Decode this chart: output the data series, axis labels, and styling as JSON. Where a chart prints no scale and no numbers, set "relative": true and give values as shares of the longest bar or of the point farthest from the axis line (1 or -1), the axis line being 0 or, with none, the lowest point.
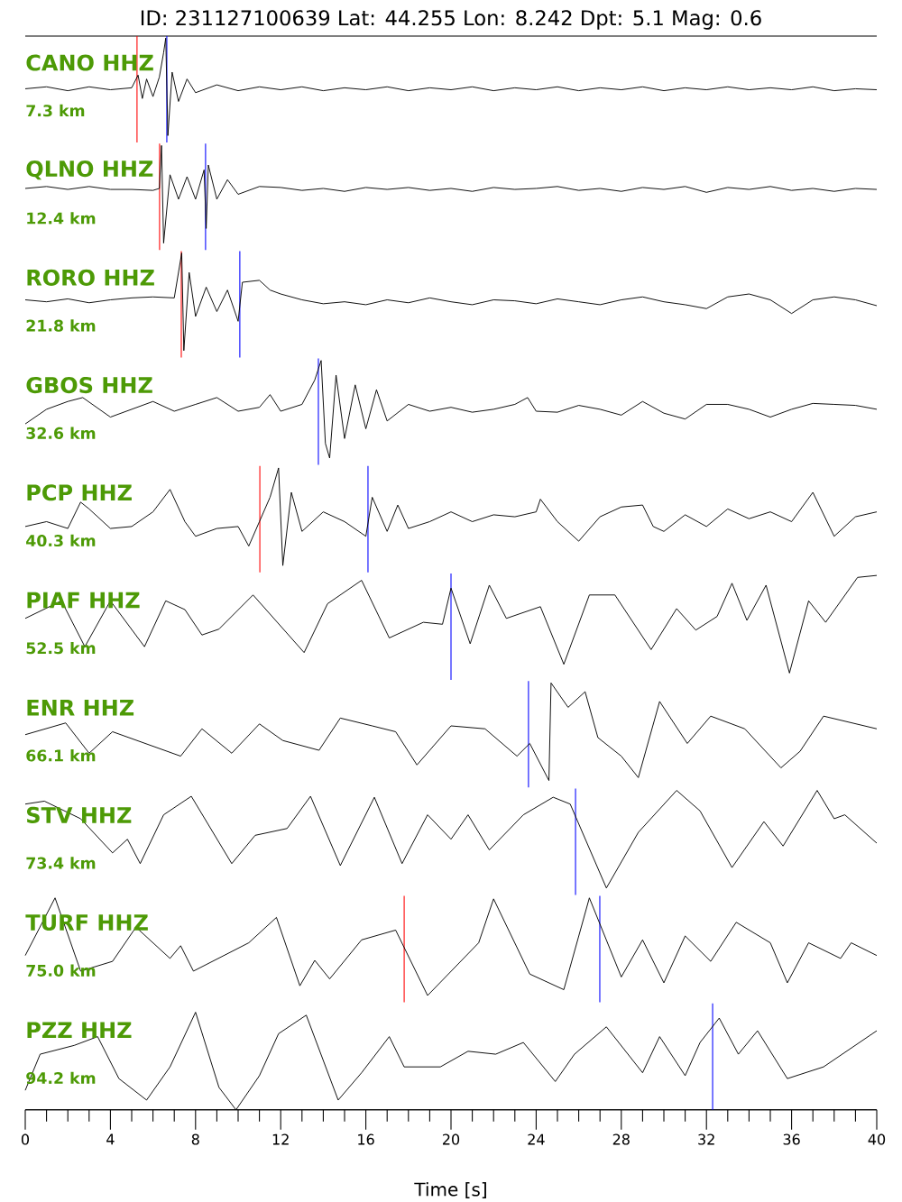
{
  "chart_data": [
    {
      "type": "other",
      "title": "ID: 231127100639 Lat: 44.255 Lon: 8.242 Dpt: 5.1 Mag: 0.6"
    },
    {
      "type": "line",
      "title": "CANO HHZ",
      "annotations": [
        "7.3 km"
      ],
      "relative": true,
      "xlim": [
        0,
        40
      ],
      "tick_labels": false,
      "color": "#000000",
      "x": [
        0,
        1,
        2,
        3,
        4,
        5,
        5.3,
        5.5,
        5.7,
        6.0,
        6.3,
        6.5,
        6.6,
        6.7,
        6.9,
        7.2,
        7.6,
        8,
        9,
        10,
        11,
        12,
        13,
        14,
        15,
        16,
        17,
        18,
        19,
        20,
        21,
        22,
        23,
        24,
        25,
        26,
        27,
        28,
        29,
        30,
        31,
        32,
        33,
        34,
        35,
        36,
        37,
        38,
        39,
        40
      ],
      "values": [
        0.48,
        0.5,
        0.46,
        0.5,
        0.47,
        0.49,
        0.62,
        0.38,
        0.58,
        0.4,
        0.6,
        0.85,
        1.0,
        0.0,
        0.65,
        0.35,
        0.58,
        0.44,
        0.52,
        0.46,
        0.5,
        0.47,
        0.5,
        0.46,
        0.49,
        0.47,
        0.5,
        0.46,
        0.49,
        0.47,
        0.5,
        0.46,
        0.49,
        0.47,
        0.5,
        0.46,
        0.49,
        0.47,
        0.5,
        0.46,
        0.49,
        0.47,
        0.5,
        0.47,
        0.49,
        0.47,
        0.5,
        0.46,
        0.48,
        0.47
      ],
      "ref_lines": [
        {
          "axis": "x",
          "value": 5.25,
          "color": "#ff0000"
        },
        {
          "axis": "x",
          "value": 6.65,
          "color": "#0000ff"
        }
      ]
    },
    {
      "type": "line",
      "title": "QLNO HHZ",
      "annotations": [
        "12.4 km"
      ],
      "relative": true,
      "xlim": [
        0,
        40
      ],
      "tick_labels": false,
      "color": "#000000",
      "x": [
        0,
        1,
        2,
        3,
        4,
        5,
        6,
        6.3,
        6.4,
        6.5,
        6.8,
        7.2,
        7.6,
        8.0,
        8.4,
        8.5,
        8.6,
        9,
        9.5,
        10,
        11,
        12,
        13,
        14,
        15,
        16,
        17,
        18,
        19,
        20,
        21,
        22,
        23,
        24,
        25,
        26,
        27,
        28,
        29,
        30,
        31,
        32,
        33,
        34,
        35,
        36,
        37,
        38,
        39,
        40
      ],
      "values": [
        0.56,
        0.58,
        0.55,
        0.58,
        0.55,
        0.55,
        0.54,
        0.56,
        1.0,
        0.0,
        0.7,
        0.45,
        0.68,
        0.45,
        0.75,
        0.15,
        0.8,
        0.45,
        0.65,
        0.5,
        0.58,
        0.57,
        0.54,
        0.56,
        0.53,
        0.57,
        0.55,
        0.57,
        0.54,
        0.56,
        0.53,
        0.57,
        0.55,
        0.56,
        0.58,
        0.54,
        0.56,
        0.53,
        0.57,
        0.55,
        0.58,
        0.52,
        0.57,
        0.55,
        0.58,
        0.54,
        0.56,
        0.53,
        0.56,
        0.55
      ],
      "ref_lines": [
        {
          "axis": "x",
          "value": 6.31,
          "color": "#ff0000"
        },
        {
          "axis": "x",
          "value": 8.47,
          "color": "#0000ff"
        }
      ]
    },
    {
      "type": "line",
      "title": "RORO HHZ",
      "annotations": [
        "21.8 km"
      ],
      "relative": true,
      "xlim": [
        0,
        40
      ],
      "tick_labels": false,
      "color": "#000000",
      "x": [
        0,
        1,
        2,
        3,
        4,
        5,
        6,
        7,
        7.35,
        7.45,
        7.7,
        8,
        8.5,
        9,
        9.5,
        10,
        10.2,
        11,
        11.5,
        12,
        13,
        14,
        15,
        16,
        17,
        18,
        19,
        20,
        21,
        22,
        23,
        24,
        25,
        26,
        27,
        28,
        29,
        30,
        31,
        32,
        33,
        34,
        35,
        36,
        37,
        38,
        39,
        40
      ],
      "values": [
        0.52,
        0.5,
        0.53,
        0.49,
        0.52,
        0.54,
        0.55,
        0.54,
        1.0,
        0.0,
        0.8,
        0.35,
        0.65,
        0.4,
        0.62,
        0.3,
        0.7,
        0.72,
        0.62,
        0.58,
        0.52,
        0.48,
        0.5,
        0.47,
        0.52,
        0.49,
        0.54,
        0.5,
        0.47,
        0.52,
        0.51,
        0.48,
        0.53,
        0.5,
        0.47,
        0.52,
        0.55,
        0.5,
        0.47,
        0.43,
        0.55,
        0.58,
        0.52,
        0.38,
        0.52,
        0.55,
        0.52,
        0.46
      ],
      "ref_lines": [
        {
          "axis": "x",
          "value": 7.33,
          "color": "#ff0000"
        },
        {
          "axis": "x",
          "value": 10.08,
          "color": "#0000ff"
        }
      ]
    },
    {
      "type": "line",
      "title": "GBOS HHZ",
      "annotations": [
        "32.6 km"
      ],
      "relative": true,
      "xlim": [
        0,
        40
      ],
      "tick_labels": false,
      "color": "#000000",
      "x": [
        0,
        1,
        2,
        2.7,
        4,
        5,
        6,
        7,
        8,
        9,
        10,
        11,
        11.5,
        12,
        13,
        13.6,
        13.9,
        14.1,
        14.3,
        14.6,
        15,
        15.5,
        16,
        16.5,
        17,
        18,
        19,
        20,
        21,
        22,
        23,
        23.6,
        24,
        25,
        26,
        27,
        28,
        29,
        30,
        31,
        32,
        33,
        34,
        35,
        36,
        37,
        38,
        39,
        40
      ],
      "values": [
        0.35,
        0.5,
        0.58,
        0.62,
        0.42,
        0.5,
        0.58,
        0.48,
        0.55,
        0.62,
        0.48,
        0.52,
        0.65,
        0.48,
        0.55,
        0.8,
        1.0,
        0.15,
        0.0,
        0.85,
        0.2,
        0.75,
        0.3,
        0.7,
        0.38,
        0.55,
        0.48,
        0.52,
        0.47,
        0.5,
        0.55,
        0.62,
        0.48,
        0.47,
        0.54,
        0.5,
        0.44,
        0.58,
        0.46,
        0.4,
        0.55,
        0.55,
        0.5,
        0.42,
        0.5,
        0.56,
        0.55,
        0.54,
        0.5
      ],
      "ref_lines": [
        {
          "axis": "x",
          "value": 13.77,
          "color": "#0000ff"
        }
      ]
    },
    {
      "type": "line",
      "title": "PCP HHZ",
      "annotations": [
        "40.3 km"
      ],
      "relative": true,
      "xlim": [
        0,
        40
      ],
      "tick_labels": false,
      "color": "#000000",
      "x": [
        0,
        1,
        2,
        2.6,
        3,
        4,
        5,
        6,
        6.8,
        7.5,
        8,
        9,
        10,
        10.5,
        11,
        11.5,
        11.9,
        12.1,
        12.5,
        13,
        14,
        15,
        16,
        16.3,
        17,
        17.5,
        18,
        19,
        20,
        21,
        22,
        23,
        24,
        24.2,
        25,
        26,
        27,
        28,
        29,
        29.5,
        30,
        31,
        32,
        33,
        34,
        35,
        36,
        37,
        38,
        39,
        40
      ],
      "values": [
        0.4,
        0.45,
        0.38,
        0.65,
        0.58,
        0.38,
        0.4,
        0.55,
        0.78,
        0.45,
        0.3,
        0.38,
        0.4,
        0.2,
        0.45,
        0.7,
        1.0,
        0.0,
        0.75,
        0.35,
        0.55,
        0.45,
        0.3,
        0.7,
        0.35,
        0.62,
        0.38,
        0.45,
        0.55,
        0.45,
        0.52,
        0.5,
        0.55,
        0.68,
        0.45,
        0.25,
        0.5,
        0.6,
        0.62,
        0.4,
        0.35,
        0.52,
        0.4,
        0.58,
        0.48,
        0.55,
        0.45,
        0.75,
        0.3,
        0.5,
        0.55
      ],
      "ref_lines": [
        {
          "axis": "x",
          "value": 11.02,
          "color": "#ff0000"
        },
        {
          "axis": "x",
          "value": 16.1,
          "color": "#0000ff"
        }
      ]
    },
    {
      "type": "line",
      "title": "PIAF HHZ",
      "annotations": [
        "52.5 km"
      ],
      "relative": true,
      "xlim": [
        0,
        40
      ],
      "tick_labels": false,
      "color": "#000000",
      "x": [
        0,
        1.7,
        2.8,
        4.0,
        5.6,
        6.6,
        7.5,
        8.3,
        9.1,
        10.7,
        11.8,
        13.1,
        14.2,
        15.8,
        17.1,
        18.7,
        19.6,
        20.0,
        20.9,
        21.8,
        22.6,
        24.2,
        25.3,
        26.5,
        27.7,
        29.4,
        30.6,
        31.5,
        32.5,
        33.2,
        33.9,
        34.8,
        35.9,
        36.8,
        37.6,
        39.1,
        40
      ],
      "values": [
        0.56,
        0.74,
        0.27,
        0.74,
        0.27,
        0.74,
        0.65,
        0.39,
        0.45,
        0.8,
        0.53,
        0.21,
        0.71,
        0.95,
        0.36,
        0.52,
        0.5,
        0.87,
        0.3,
        0.9,
        0.56,
        0.68,
        0.09,
        0.8,
        0.8,
        0.24,
        0.66,
        0.44,
        0.58,
        0.92,
        0.54,
        0.9,
        0.0,
        0.74,
        0.52,
        0.98,
        1.0
      ],
      "ref_lines": [
        {
          "axis": "x",
          "value": 20.0,
          "color": "#0000ff"
        }
      ]
    },
    {
      "type": "line",
      "title": "ENR HHZ",
      "annotations": [
        "66.1 km"
      ],
      "relative": true,
      "xlim": [
        0,
        40
      ],
      "tick_labels": false,
      "color": "#000000",
      "x": [
        0,
        1.9,
        3.0,
        4.1,
        7.3,
        8.3,
        9.7,
        11.0,
        12.1,
        13.8,
        14.8,
        16.3,
        17.4,
        18.4,
        20.0,
        21.6,
        23.1,
        23.7,
        24.6,
        24.7,
        25.5,
        26.3,
        26.9,
        28.0,
        28.8,
        29.8,
        31.1,
        32.2,
        33.8,
        35.5,
        36.4,
        37.5,
        40
      ],
      "values": [
        0.47,
        0.59,
        0.28,
        0.5,
        0.25,
        0.53,
        0.28,
        0.58,
        0.41,
        0.31,
        0.64,
        0.56,
        0.5,
        0.16,
        0.56,
        0.53,
        0.25,
        0.38,
        0.0,
        1.0,
        0.75,
        0.91,
        0.44,
        0.25,
        0.03,
        0.81,
        0.38,
        0.66,
        0.53,
        0.13,
        0.3,
        0.66,
        0.53
      ],
      "ref_lines": [
        {
          "axis": "x",
          "value": 23.64,
          "color": "#0000ff"
        }
      ]
    },
    {
      "type": "line",
      "title": "STV HHZ",
      "annotations": [
        "73.4 km"
      ],
      "relative": true,
      "xlim": [
        0,
        40
      ],
      "tick_labels": false,
      "color": "#000000",
      "x": [
        0,
        0.9,
        2.6,
        4.1,
        4.8,
        5.4,
        6.5,
        7.8,
        9.7,
        10.8,
        12.3,
        13.4,
        14.8,
        16.4,
        17.7,
        18.9,
        20.0,
        20.8,
        21.8,
        23.4,
        24.8,
        25.6,
        27.3,
        28.8,
        30.6,
        31.7,
        33.2,
        34.7,
        35.6,
        37.2,
        38.0,
        38.5,
        40
      ],
      "values": [
        0.86,
        0.89,
        0.71,
        0.36,
        0.5,
        0.25,
        0.75,
        0.94,
        0.25,
        0.54,
        0.61,
        0.94,
        0.23,
        0.93,
        0.25,
        0.75,
        0.5,
        0.75,
        0.39,
        0.75,
        0.93,
        0.86,
        0.0,
        0.57,
        1.0,
        0.79,
        0.21,
        0.68,
        0.43,
        1.0,
        0.71,
        0.75,
        0.46
      ],
      "ref_lines": [
        {
          "axis": "x",
          "value": 25.85,
          "color": "#0000ff"
        }
      ]
    },
    {
      "type": "line",
      "title": "TURF HHZ",
      "annotations": [
        "75.0 km"
      ],
      "relative": true,
      "xlim": [
        0,
        40
      ],
      "tick_labels": false,
      "color": "#000000",
      "x": [
        0,
        1.4,
        2.6,
        4.1,
        5.2,
        6.8,
        7.3,
        7.9,
        10.5,
        11.8,
        12.9,
        13.6,
        14.3,
        15.8,
        17.4,
        18.9,
        21.3,
        22.0,
        23.7,
        25.3,
        26.5,
        28.0,
        29.0,
        30.0,
        31.0,
        32.2,
        33.4,
        35.0,
        35.8,
        36.8,
        38.3,
        38.8,
        40
      ],
      "values": [
        0.41,
        1.0,
        0.25,
        0.35,
        0.7,
        0.38,
        0.51,
        0.25,
        0.54,
        0.8,
        0.1,
        0.36,
        0.17,
        0.57,
        0.67,
        0.0,
        0.54,
        0.99,
        0.22,
        0.06,
        1.0,
        0.19,
        0.57,
        0.13,
        0.61,
        0.35,
        0.75,
        0.54,
        0.13,
        0.54,
        0.38,
        0.54,
        0.41
      ],
      "ref_lines": [
        {
          "axis": "x",
          "value": 17.8,
          "color": "#ff0000"
        },
        {
          "axis": "x",
          "value": 26.99,
          "color": "#0000ff"
        }
      ]
    },
    {
      "type": "line",
      "title": "PZZ HHZ",
      "annotations": [
        "94.2 km"
      ],
      "relative": true,
      "xlim": [
        0,
        40
      ],
      "tick_labels": "x",
      "xlabel": "Time [s]",
      "color": "#000000",
      "xticks": [
        0,
        {
          "value": 1,
          "label": null
        },
        {
          "value": 2,
          "label": null
        },
        {
          "value": 3,
          "label": null
        },
        4,
        {
          "value": 5,
          "label": null
        },
        {
          "value": 6,
          "label": null
        },
        {
          "value": 7,
          "label": null
        },
        8,
        {
          "value": 9,
          "label": null
        },
        {
          "value": 10,
          "label": null
        },
        {
          "value": 11,
          "label": null
        },
        12,
        {
          "value": 13,
          "label": null
        },
        {
          "value": 14,
          "label": null
        },
        {
          "value": 15,
          "label": null
        },
        16,
        {
          "value": 17,
          "label": null
        },
        {
          "value": 18,
          "label": null
        },
        {
          "value": 19,
          "label": null
        },
        20,
        {
          "value": 21,
          "label": null
        },
        {
          "value": 22,
          "label": null
        },
        {
          "value": 23,
          "label": null
        },
        24,
        {
          "value": 25,
          "label": null
        },
        {
          "value": 26,
          "label": null
        },
        {
          "value": 27,
          "label": null
        },
        28,
        {
          "value": 29,
          "label": null
        },
        {
          "value": 30,
          "label": null
        },
        {
          "value": 31,
          "label": null
        },
        32,
        {
          "value": 33,
          "label": null
        },
        {
          "value": 34,
          "label": null
        },
        {
          "value": 35,
          "label": null
        },
        36,
        {
          "value": 37,
          "label": null
        },
        {
          "value": 38,
          "label": null
        },
        {
          "value": 39,
          "label": null
        },
        40
      ],
      "x": [
        0,
        0.7,
        2.3,
        3.4,
        4.4,
        5.7,
        6.8,
        8.0,
        9.1,
        9.9,
        11.0,
        11.9,
        13.2,
        14.7,
        15.8,
        17.1,
        17.8,
        19.5,
        20.8,
        22.1,
        23.4,
        24.9,
        25.8,
        27.3,
        29.0,
        29.8,
        31.0,
        31.7,
        32.6,
        33.5,
        34.4,
        35.8,
        37.5,
        40
      ],
      "values": [
        0.2,
        0.57,
        0.66,
        0.75,
        0.32,
        0.1,
        0.44,
        1.0,
        0.23,
        0.0,
        0.35,
        0.78,
        0.97,
        0.1,
        0.38,
        0.75,
        0.44,
        0.44,
        0.6,
        0.57,
        0.69,
        0.29,
        0.57,
        0.85,
        0.38,
        0.75,
        0.35,
        0.69,
        0.94,
        0.57,
        0.81,
        0.32,
        0.44,
        0.81
      ],
      "ref_lines": [
        {
          "axis": "x",
          "value": 32.29,
          "color": "#0000ff"
        }
      ]
    }
  ]
}
